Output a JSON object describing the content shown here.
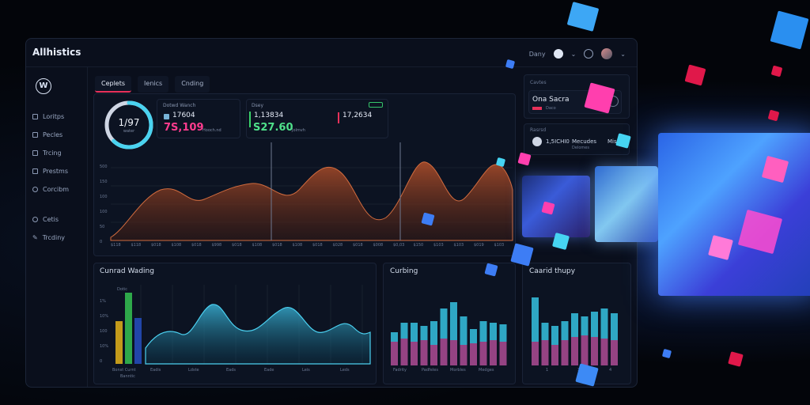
{
  "app": {
    "title": "Allhistics"
  },
  "header": {
    "user_label": "Dany"
  },
  "sidebar": {
    "logo": "W",
    "items": [
      {
        "label": "Loritps"
      },
      {
        "label": "Pecles"
      },
      {
        "label": "Trcing"
      },
      {
        "label": "Prestms"
      },
      {
        "label": "Corcibm"
      },
      {
        "label": "Cetis"
      },
      {
        "label": "Trcdiny"
      }
    ]
  },
  "tabs": [
    {
      "label": "Ceplets"
    },
    {
      "label": "Ienics"
    },
    {
      "label": "Cnding"
    }
  ],
  "donut": {
    "value": "1/97",
    "sub": "water",
    "fraction": 0.62
  },
  "kpi1": {
    "caption": "Dotwd Wanch",
    "small": "17604",
    "big": "7S,109",
    "tiny": "Hooch.nd"
  },
  "kpi2": {
    "caption": "Dsey",
    "small": "1,13834",
    "big": "S27.60",
    "tiny": "Jolmvh",
    "small2": "17,2634"
  },
  "main_chart": {
    "y_ticks": [
      "500",
      "150",
      "100",
      "100",
      "50",
      "0"
    ],
    "x_ticks": [
      "$118",
      "$118",
      "$018",
      "$108",
      "$018",
      "$998",
      "$018",
      "$108",
      "$018",
      "$108",
      "$018",
      "$028",
      "$018",
      "$008",
      "$0,03",
      "$150",
      "$103",
      "$103",
      "$019",
      "$103"
    ]
  },
  "panels": {
    "left_title": "Cunrad Wading",
    "left_legend": "Dotic",
    "left_y": [
      "1%",
      "10%",
      "100",
      "10%",
      "0"
    ],
    "left_x": [
      "Bonst Curnt",
      "Eadis",
      "Ldste",
      "Eads",
      "Eade",
      "Leis",
      "Leds"
    ],
    "left_x_sub": "Banntic",
    "mid_title": "Curbing",
    "mid_x": [
      "Fadrity",
      "Padfeles",
      "Morbles",
      "Medges"
    ],
    "right_title": "Caarid thupy",
    "right_x": [
      "1",
      "3",
      "4"
    ]
  },
  "right_col": {
    "header": "Cavtes",
    "card_title": "Ona Sacra",
    "card_sub": "Daco",
    "list_cap": "Rasrsd",
    "row_a": "1,5ICHI0",
    "row_b": "Mecudes",
    "row_b_sub": "Delomes",
    "row_c": "Mis"
  }
}
